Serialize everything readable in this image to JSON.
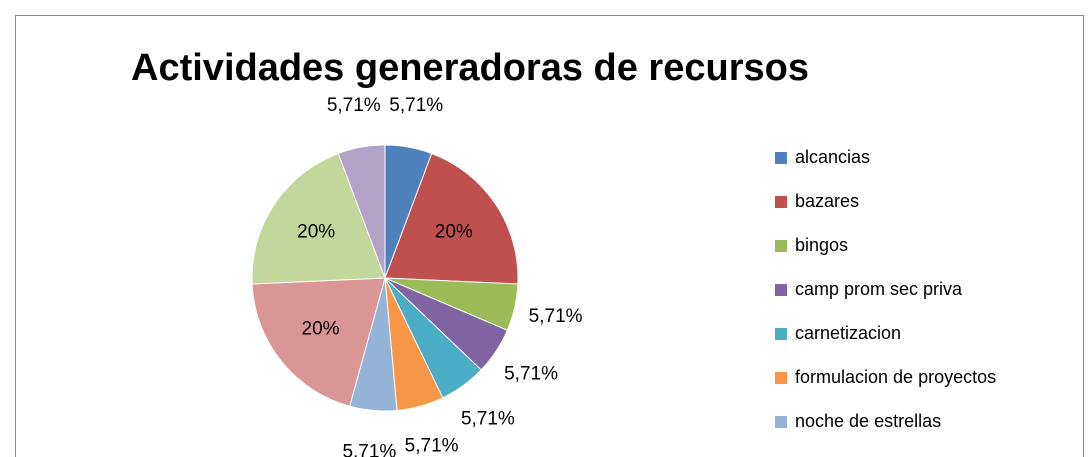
{
  "chart_data": {
    "type": "pie",
    "title": "Actividades generadoras de recursos",
    "categories": [
      "alcancias",
      "bazares",
      "bingos",
      "camp prom sec priva",
      "carnetizacion",
      "formulacion de proyectos",
      "noche de estrellas",
      null,
      null,
      null
    ],
    "values": [
      5.71,
      20,
      5.71,
      5.71,
      5.71,
      5.71,
      5.71,
      20,
      20,
      5.71
    ],
    "value_labels": [
      "5,71%",
      "20%",
      "5,71%",
      "5,71%",
      "5,71%",
      "5,71%",
      "5,71%",
      "20%",
      "20%",
      "5,71%"
    ],
    "colors": [
      "#4f81bd",
      "#c0504d",
      "#9bbb59",
      "#8064a2",
      "#4bacc6",
      "#f79646",
      "#95b3d7",
      "#d99694",
      "#c3d69b",
      "#b3a2c7"
    ],
    "legend": "right"
  }
}
